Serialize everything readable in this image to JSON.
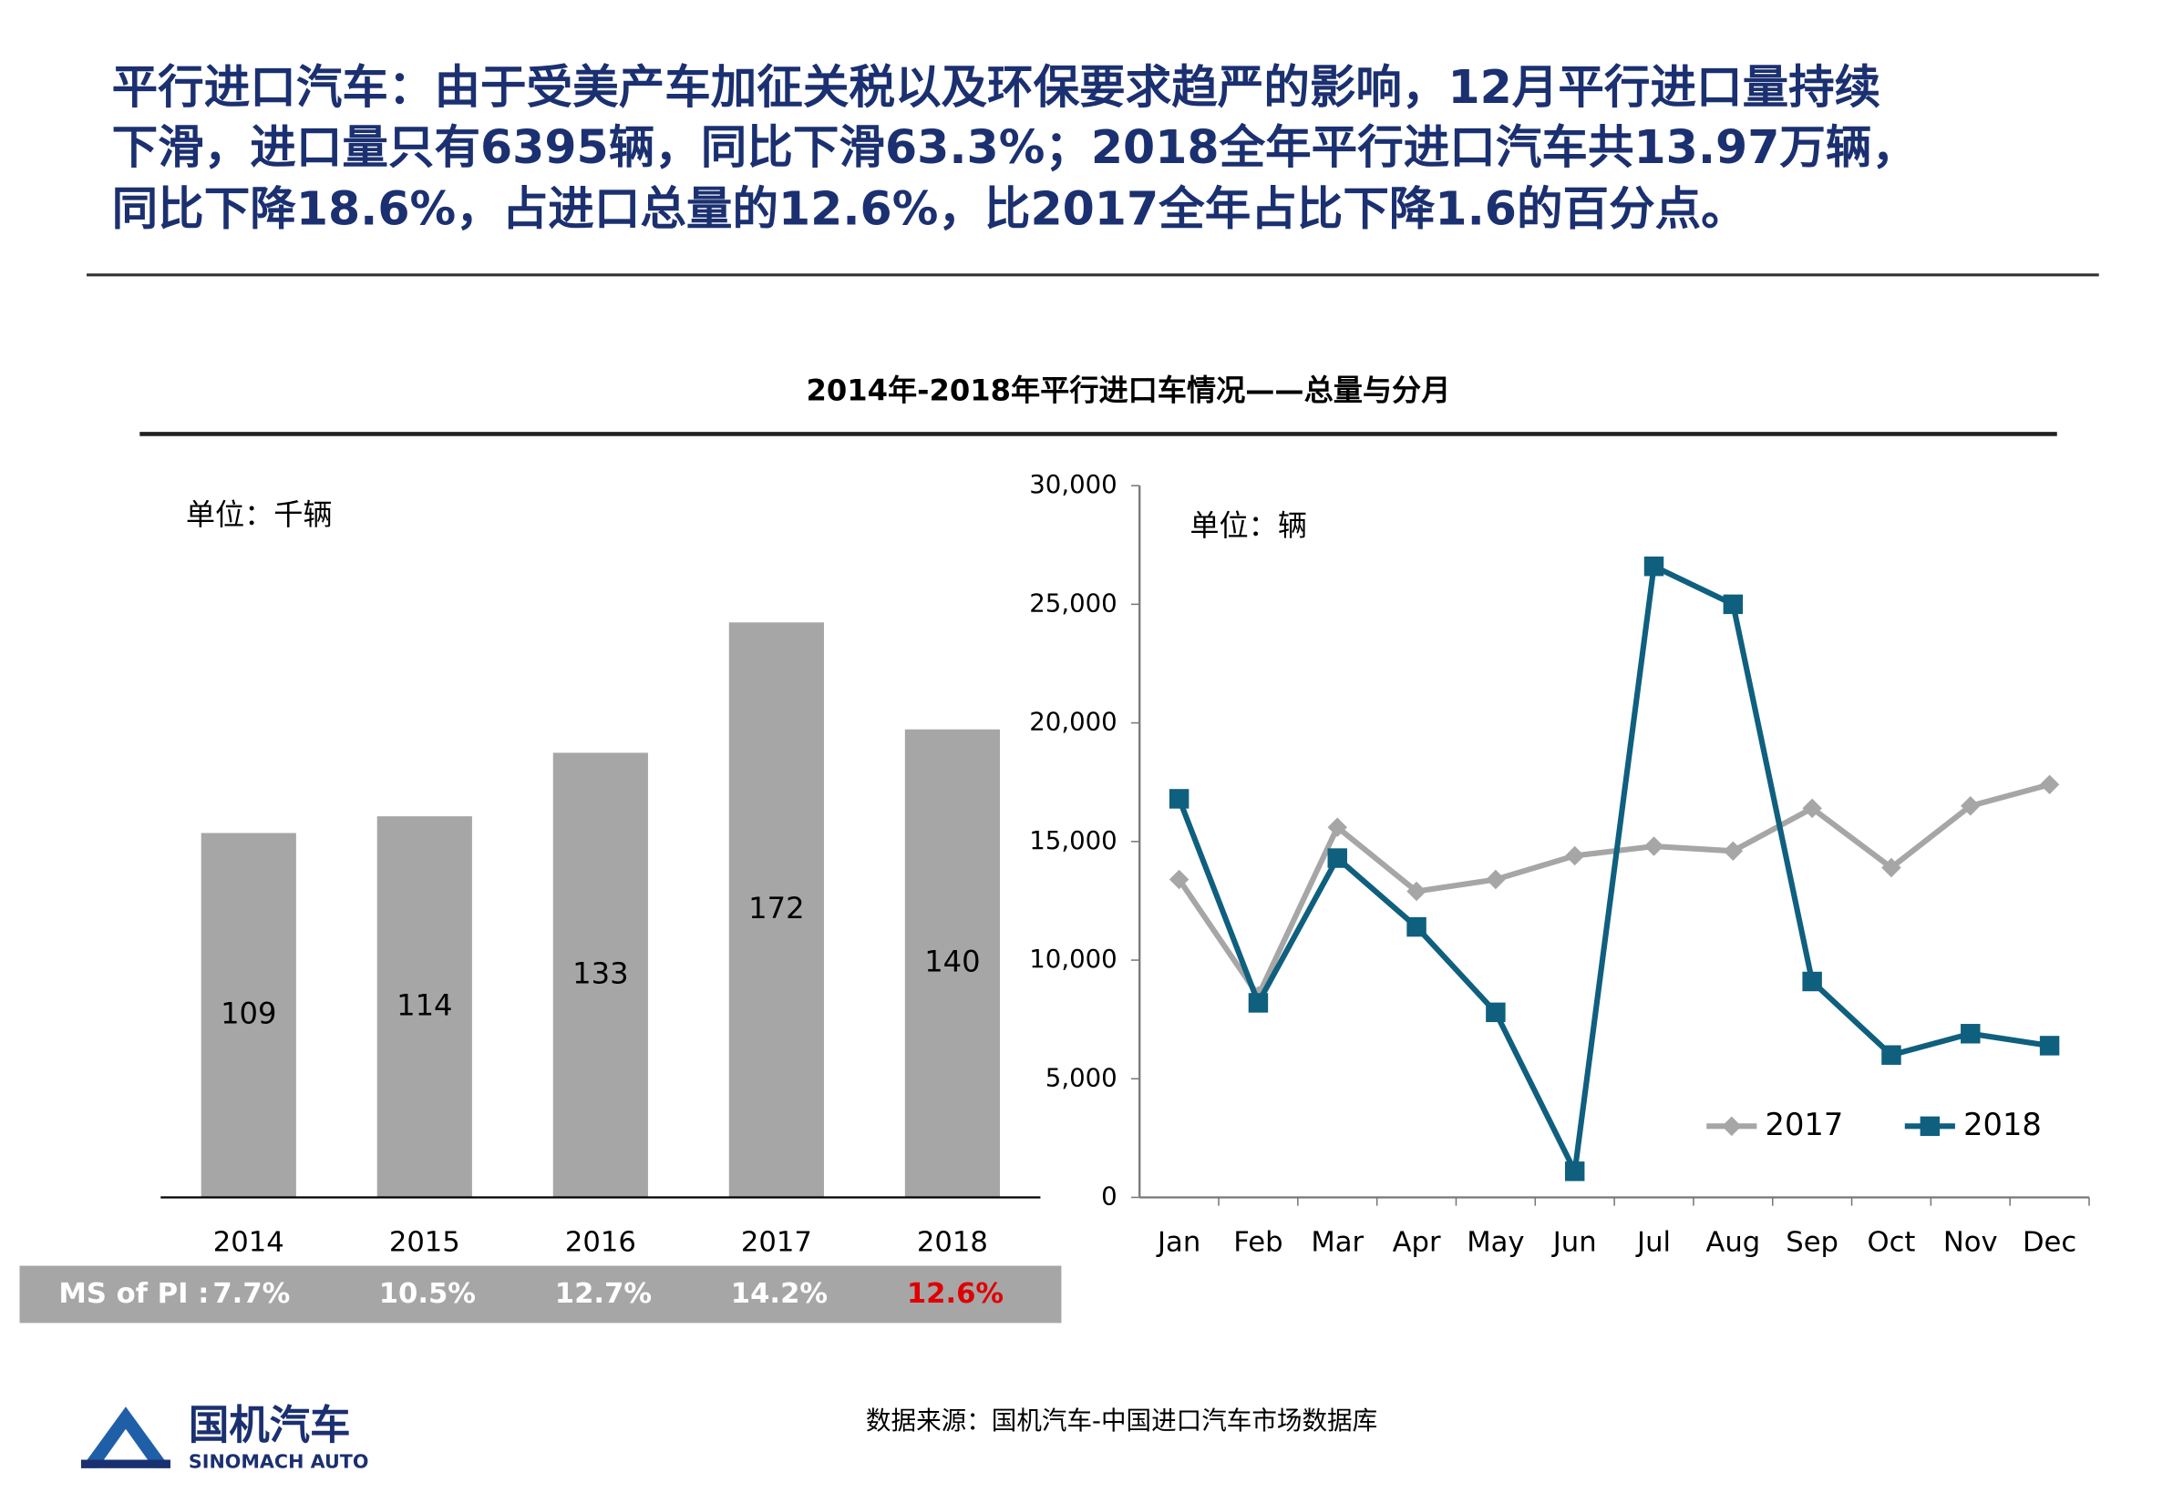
{
  "header": {
    "title_lines": [
      "平行进口汽车：由于受美产车加征关税以及环保要求趋严的影响，12月平行进口量持续",
      "下滑，进口量只有6395辆，同比下滑63.3%；2018全年平行进口汽车共13.97万辆，",
      "同比下降18.6%，占进口总量的12.6%，比2017全年占比下降1.6的百分点。"
    ]
  },
  "chart_title": "2014年-2018年平行进口车情况——总量与分月",
  "chart_data": [
    {
      "type": "bar",
      "unit": "单位：千辆",
      "categories": [
        "2014",
        "2015",
        "2016",
        "2017",
        "2018"
      ],
      "values": [
        109,
        114,
        133,
        172,
        140
      ],
      "color": "#a6a6a6",
      "share_title": "MS of PI :",
      "share_labels": [
        "7.7%",
        "10.5%",
        "12.7%",
        "14.2%",
        "12.6%"
      ],
      "share_colors": [
        "#ffffff",
        "#ffffff",
        "#ffffff",
        "#ffffff",
        "#e00000"
      ]
    },
    {
      "type": "line",
      "unit": "单位：辆",
      "categories": [
        "Jan",
        "Feb",
        "Mar",
        "Apr",
        "May",
        "Jun",
        "Jul",
        "Aug",
        "Sep",
        "Oct",
        "Nov",
        "Dec"
      ],
      "ylim": [
        0,
        30000
      ],
      "yticks": [
        0,
        {
          "value": 5000,
          "label": "5,000"
        },
        {
          "value": 10000,
          "label": "10,000"
        },
        {
          "value": 15000,
          "label": "15,000"
        },
        {
          "value": 20000,
          "label": "20,000"
        },
        {
          "value": 25000,
          "label": "25,000"
        },
        {
          "value": 30000,
          "label": "30,000"
        }
      ],
      "legend": "lower right",
      "series": [
        {
          "name": "2017",
          "color": "#a6a6a6",
          "marker": "diamond",
          "values": [
            13400,
            8500,
            15600,
            12900,
            13400,
            14400,
            14800,
            14600,
            16400,
            13900,
            16500,
            17400
          ]
        },
        {
          "name": "2018",
          "color": "#0f5f7f",
          "marker": "square",
          "values": [
            16800,
            8200,
            14300,
            11400,
            7800,
            1100,
            26600,
            25000,
            9100,
            6000,
            6900,
            6395
          ]
        }
      ]
    }
  ],
  "source": "数据来源：国机汽车-中国进口汽车市场数据库",
  "logo": {
    "name": "国机汽车",
    "subname": "SINOMACH AUTO"
  }
}
